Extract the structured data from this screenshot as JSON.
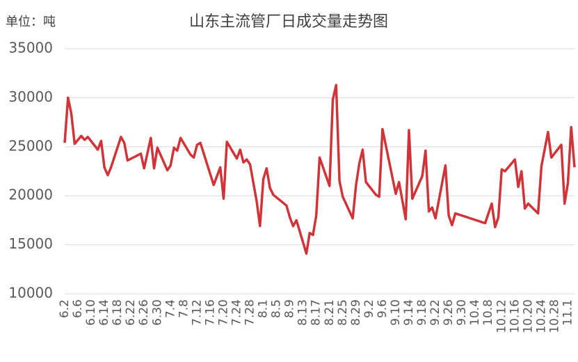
{
  "chart_data": {
    "type": "line",
    "title": "山东主流管厂日成交量走势图",
    "unit_label": "单位：吨",
    "x": [
      "6.2",
      "6.3",
      "6.4",
      "6.5",
      "6.7",
      "6.8",
      "6.9",
      "6.12",
      "6.13",
      "6.14",
      "6.15",
      "6.16",
      "6.19",
      "6.20",
      "6.21",
      "6.25",
      "6.26",
      "6.28",
      "6.29",
      "6.30",
      "7.3",
      "7.4",
      "7.5",
      "7.6",
      "7.7",
      "7.10",
      "7.11",
      "7.12",
      "7.13",
      "7.17",
      "7.19",
      "7.20",
      "7.21",
      "7.24",
      "7.25",
      "7.26",
      "7.27",
      "7.28",
      "7.30",
      "7.31",
      "8.1",
      "8.2",
      "8.3",
      "8.4",
      "8.8",
      "8.9",
      "8.10",
      "8.11",
      "8.14",
      "8.15",
      "8.16",
      "8.17",
      "8.18",
      "8.21",
      "8.22",
      "8.23",
      "8.24",
      "8.25",
      "8.28",
      "8.29",
      "8.30",
      "8.31",
      "9.1",
      "9.4",
      "9.5",
      "9.6",
      "9.10",
      "9.11",
      "9.13",
      "9.14",
      "9.15",
      "9.18",
      "9.19",
      "9.20",
      "9.21",
      "9.22",
      "9.25",
      "9.26",
      "9.27",
      "9.28",
      "10.7",
      "10.9",
      "10.10",
      "10.11",
      "10.12",
      "10.13",
      "10.16",
      "10.17",
      "10.18",
      "10.19",
      "10.20",
      "10.23",
      "10.24",
      "10.26",
      "10.27",
      "10.30",
      "10.31",
      "11.1",
      "11.2",
      "11.3"
    ],
    "values": [
      25400,
      30000,
      28400,
      25300,
      26100,
      25700,
      26000,
      24700,
      25600,
      22900,
      22100,
      22900,
      26000,
      25400,
      23600,
      24300,
      22800,
      25900,
      22800,
      24900,
      22600,
      23100,
      24900,
      24600,
      25900,
      24200,
      23900,
      25200,
      25400,
      21100,
      22900,
      19700,
      25500,
      23800,
      24700,
      23400,
      23700,
      23200,
      19400,
      16900,
      21700,
      22800,
      20800,
      20100,
      19000,
      17800,
      16900,
      17500,
      14100,
      16200,
      16000,
      18000,
      23900,
      21000,
      29800,
      31300,
      21500,
      19900,
      17700,
      21100,
      23300,
      24700,
      21400,
      20100,
      19900,
      26800,
      20200,
      21400,
      17600,
      26700,
      19700,
      22000,
      24600,
      18400,
      18800,
      17700,
      23100,
      18000,
      17000,
      18200,
      17200,
      19200,
      16800,
      17800,
      22700,
      22500,
      23700,
      20900,
      22500,
      18700,
      19200,
      18200,
      23000,
      26500,
      23900,
      25200,
      19200,
      21300,
      27000,
      22900
    ],
    "color": "#d13438",
    "xticks": [
      "6.2",
      "6.6",
      "6.10",
      "6.14",
      "6.18",
      "6.22",
      "6.26",
      "6.30",
      "7.4",
      "7.8",
      "7.12",
      "7.16",
      "7.20",
      "7.24",
      "7.28",
      "8.1",
      "8.5",
      "8.9",
      "8.13",
      "8.17",
      "8.21",
      "8.25",
      "8.29",
      "9.2",
      "9.6",
      "9.10",
      "9.14",
      "9.18",
      "9.22",
      "9.26",
      "9.30",
      "10.4",
      "10.8",
      "10.12",
      "10.16",
      "10.20",
      "10.24",
      "10.28",
      "11.1"
    ],
    "ylim": [
      10000,
      35000
    ],
    "yticks": [
      10000,
      15000,
      20000,
      25000,
      30000,
      35000
    ],
    "grid": true
  }
}
